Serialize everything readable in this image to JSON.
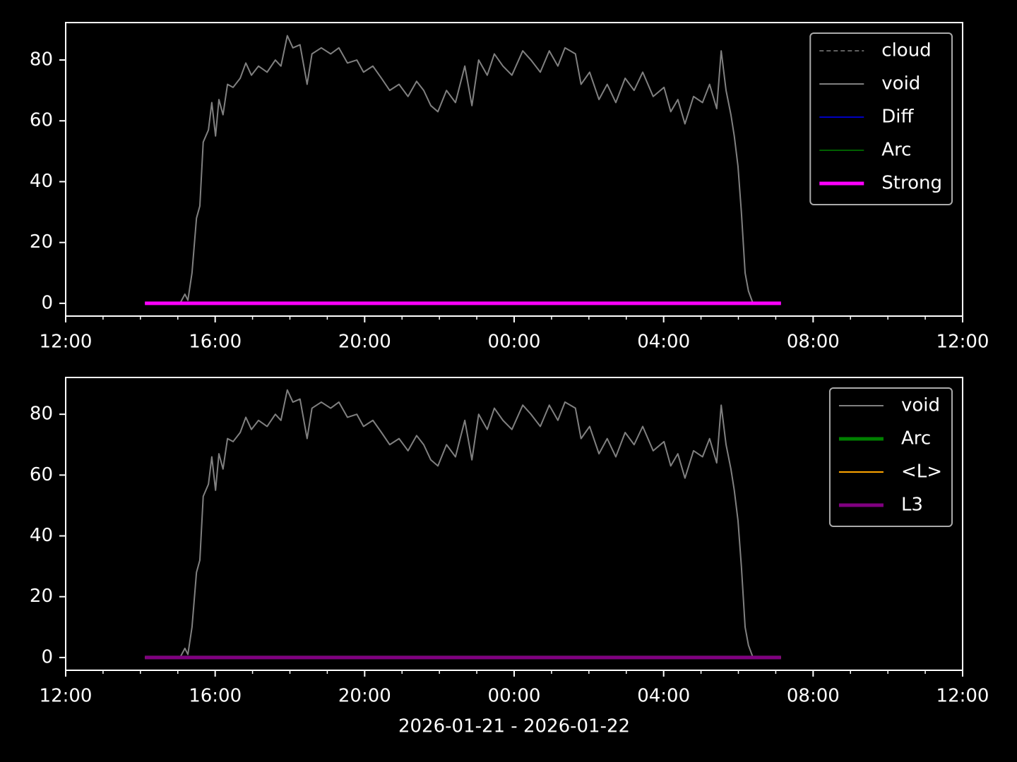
{
  "chart_data": [
    {
      "type": "line",
      "legend": "upper right",
      "xlim": [
        12,
        36
      ],
      "ylim": [
        -4.2,
        92.3
      ],
      "xticks": [
        {
          "value": 12,
          "label": "12:00"
        },
        {
          "value": 16,
          "label": "16:00"
        },
        {
          "value": 20,
          "label": "20:00"
        },
        {
          "value": 24,
          "label": "00:00"
        },
        {
          "value": 28,
          "label": "04:00"
        },
        {
          "value": 32,
          "label": "08:00"
        },
        {
          "value": 36,
          "label": "12:00"
        }
      ],
      "xminorticks": [
        13,
        14,
        15,
        17,
        18,
        19,
        21,
        22,
        23,
        25,
        26,
        27,
        29,
        30,
        31,
        33,
        34,
        35
      ],
      "yticks": [
        0,
        20,
        40,
        60,
        80
      ],
      "x": [
        14.12,
        15.06,
        15.19,
        15.27,
        15.38,
        15.5,
        15.59,
        15.68,
        15.82,
        15.91,
        16.01,
        16.1,
        16.21,
        16.33,
        16.48,
        16.67,
        16.82,
        16.97,
        17.16,
        17.39,
        17.61,
        17.76,
        17.93,
        18.08,
        18.27,
        18.46,
        18.59,
        18.84,
        19.09,
        19.31,
        19.54,
        19.79,
        19.97,
        20.22,
        20.45,
        20.67,
        20.92,
        21.16,
        21.39,
        21.58,
        21.77,
        21.96,
        22.19,
        22.43,
        22.68,
        22.87,
        23.05,
        23.28,
        23.47,
        23.7,
        23.94,
        24.23,
        24.45,
        24.7,
        24.94,
        25.17,
        25.36,
        25.64,
        25.79,
        26.02,
        26.27,
        26.49,
        26.72,
        26.97,
        27.21,
        27.44,
        27.72,
        28.01,
        28.19,
        28.38,
        28.57,
        28.8,
        29.04,
        29.23,
        29.42,
        29.54,
        29.67,
        29.8,
        29.89,
        29.99,
        30.08,
        30.18,
        30.27,
        30.39,
        31.14
      ],
      "series": [
        {
          "name": "cloud",
          "color": "#808080",
          "linewidth": 1.5,
          "linestyle": "dashed"
        },
        {
          "name": "void",
          "color": "#808080",
          "linewidth": 2,
          "values": [
            0,
            0,
            3,
            1,
            10,
            28,
            32,
            53,
            57,
            66,
            55,
            67,
            62,
            72,
            71,
            74,
            79,
            75,
            78,
            76,
            80,
            78,
            88,
            84,
            85,
            72,
            82,
            84,
            82,
            84,
            79,
            80,
            76,
            78,
            74,
            70,
            72,
            68,
            73,
            70,
            65,
            63,
            70,
            66,
            78,
            65,
            80,
            75,
            82,
            78,
            75,
            83,
            80,
            76,
            83,
            78,
            84,
            82,
            72,
            76,
            67,
            72,
            66,
            74,
            70,
            76,
            68,
            71,
            63,
            67,
            59,
            68,
            66,
            72,
            64,
            83,
            70,
            62,
            55,
            45,
            30,
            10,
            4,
            0,
            0
          ]
        },
        {
          "name": "Diff",
          "color": "#0000ff",
          "linewidth": 1.5,
          "x": [
            14.12,
            31.14
          ],
          "values": [
            0,
            0
          ]
        },
        {
          "name": "Arc",
          "color": "#008000",
          "linewidth": 1.5,
          "x": [
            14.12,
            31.14
          ],
          "values": [
            0,
            0
          ]
        },
        {
          "name": "Strong",
          "color": "#ff00ff",
          "linewidth": 5,
          "x": [
            14.12,
            31.14
          ],
          "values": [
            0,
            0
          ]
        }
      ]
    },
    {
      "type": "line",
      "legend": "upper right",
      "xlabel": "2026-01-21 - 2026-01-22",
      "xlim": [
        12,
        36
      ],
      "ylim": [
        -4.2,
        92.1
      ],
      "xticks": [
        {
          "value": 12,
          "label": "12:00"
        },
        {
          "value": 16,
          "label": "16:00"
        },
        {
          "value": 20,
          "label": "20:00"
        },
        {
          "value": 24,
          "label": "00:00"
        },
        {
          "value": 28,
          "label": "04:00"
        },
        {
          "value": 32,
          "label": "08:00"
        },
        {
          "value": 36,
          "label": "12:00"
        }
      ],
      "xminorticks": [
        13,
        14,
        15,
        17,
        18,
        19,
        21,
        22,
        23,
        25,
        26,
        27,
        29,
        30,
        31,
        33,
        34,
        35
      ],
      "yticks": [
        0,
        20,
        40,
        60,
        80
      ],
      "x": [
        14.12,
        15.06,
        15.19,
        15.27,
        15.38,
        15.5,
        15.59,
        15.68,
        15.82,
        15.91,
        16.01,
        16.1,
        16.21,
        16.33,
        16.48,
        16.67,
        16.82,
        16.97,
        17.16,
        17.39,
        17.61,
        17.76,
        17.93,
        18.08,
        18.27,
        18.46,
        18.59,
        18.84,
        19.09,
        19.31,
        19.54,
        19.79,
        19.97,
        20.22,
        20.45,
        20.67,
        20.92,
        21.16,
        21.39,
        21.58,
        21.77,
        21.96,
        22.19,
        22.43,
        22.68,
        22.87,
        23.05,
        23.28,
        23.47,
        23.7,
        23.94,
        24.23,
        24.45,
        24.7,
        24.94,
        25.17,
        25.36,
        25.64,
        25.79,
        26.02,
        26.27,
        26.49,
        26.72,
        26.97,
        27.21,
        27.44,
        27.72,
        28.01,
        28.19,
        28.38,
        28.57,
        28.8,
        29.04,
        29.23,
        29.42,
        29.54,
        29.67,
        29.8,
        29.89,
        29.99,
        30.08,
        30.18,
        30.27,
        30.39,
        31.14
      ],
      "series": [
        {
          "name": "void",
          "color": "#808080",
          "linewidth": 2,
          "values": [
            0,
            0,
            3,
            1,
            10,
            28,
            32,
            53,
            57,
            66,
            55,
            67,
            62,
            72,
            71,
            74,
            79,
            75,
            78,
            76,
            80,
            78,
            88,
            84,
            85,
            72,
            82,
            84,
            82,
            84,
            79,
            80,
            76,
            78,
            74,
            70,
            72,
            68,
            73,
            70,
            65,
            63,
            70,
            66,
            78,
            65,
            80,
            75,
            82,
            78,
            75,
            83,
            80,
            76,
            83,
            78,
            84,
            82,
            72,
            76,
            67,
            72,
            66,
            74,
            70,
            76,
            68,
            71,
            63,
            67,
            59,
            68,
            66,
            72,
            64,
            83,
            70,
            62,
            55,
            45,
            30,
            10,
            4,
            0,
            0
          ]
        },
        {
          "name": "Arc",
          "color": "#008000",
          "linewidth": 5,
          "x": [
            14.12,
            31.14
          ],
          "values": [
            0,
            0
          ]
        },
        {
          "name": "<L>",
          "color": "#ffa500",
          "linewidth": 2,
          "x": [
            14.12,
            31.14
          ],
          "values": [
            0,
            0
          ]
        },
        {
          "name": "L3",
          "color": "#800080",
          "linewidth": 5,
          "x": [
            14.12,
            31.14
          ],
          "values": [
            0,
            0
          ]
        }
      ]
    }
  ]
}
